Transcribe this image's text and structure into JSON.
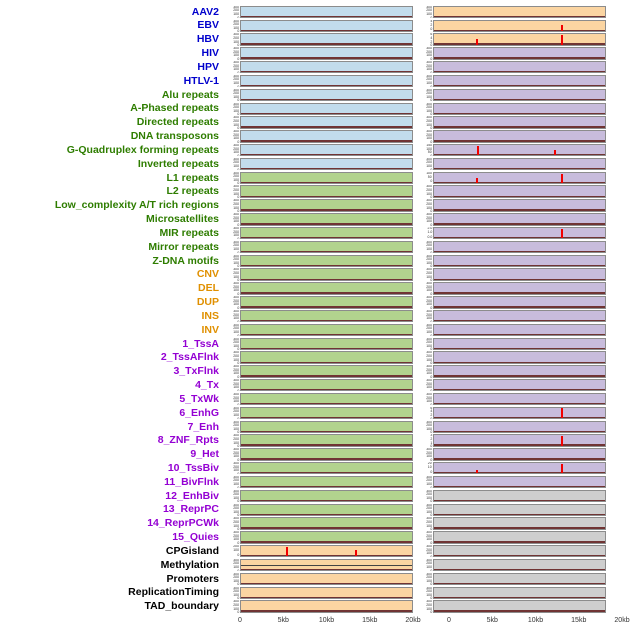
{
  "chart_data": {
    "type": "line",
    "layout": "small-multiples; 44 feature rows x 2 columns of mini coverage tracks over a 0-20kb window",
    "x_ticks": [
      "0",
      "5kb",
      "10kb",
      "15kb",
      "20kb"
    ],
    "x_range_kb": [
      0,
      20
    ],
    "default_yticks": [
      "300",
      "200",
      "100",
      "0"
    ],
    "palette": {
      "panel_blue": "#c2dcec",
      "panel_green": "#b2d38e",
      "panel_orange": "#fbd5a2",
      "panel_purple": "#c8bcdc",
      "panel_gray": "#cecece",
      "spike": "#f20000",
      "baseline": "#703434",
      "label_virus": "#0000cc",
      "label_repeat": "#2e7d00",
      "label_sv": "#e09000",
      "label_chromatin": "#9400d3",
      "label_other": "#000000"
    },
    "rows": [
      {
        "label": "AAV2",
        "group": "virus",
        "left": {
          "bg": "blue"
        },
        "right": {
          "bg": "orange"
        }
      },
      {
        "label": "EBV",
        "group": "virus",
        "left": {
          "bg": "blue"
        },
        "right": {
          "bg": "orange",
          "yticks": [
            "4",
            "2",
            "0"
          ],
          "spikes": [
            {
              "x": 0.75,
              "h": 0.55
            }
          ]
        }
      },
      {
        "label": "HBV",
        "group": "virus",
        "left": {
          "bg": "blue"
        },
        "right": {
          "bg": "orange",
          "yticks": [
            "6",
            "4",
            "2",
            "0"
          ],
          "spikes": [
            {
              "x": 0.25,
              "h": 0.55
            },
            {
              "x": 0.75,
              "h": 0.95
            }
          ]
        }
      },
      {
        "label": "HIV",
        "group": "virus",
        "left": {
          "bg": "blue"
        },
        "right": {
          "bg": "purple"
        }
      },
      {
        "label": "HPV",
        "group": "virus",
        "left": {
          "bg": "blue"
        },
        "right": {
          "bg": "purple"
        }
      },
      {
        "label": "HTLV-1",
        "group": "virus",
        "left": {
          "bg": "blue"
        },
        "right": {
          "bg": "purple"
        }
      },
      {
        "label": "Alu repeats",
        "group": "repeat",
        "left": {
          "bg": "blue"
        },
        "right": {
          "bg": "purple"
        }
      },
      {
        "label": "A-Phased repeats",
        "group": "repeat",
        "left": {
          "bg": "blue"
        },
        "right": {
          "bg": "purple"
        }
      },
      {
        "label": "Directed repeats",
        "group": "repeat",
        "left": {
          "bg": "blue"
        },
        "right": {
          "bg": "purple"
        }
      },
      {
        "label": "DNA transposons",
        "group": "repeat",
        "left": {
          "bg": "blue"
        },
        "right": {
          "bg": "purple"
        }
      },
      {
        "label": "G-Quadruplex forming repeats",
        "group": "repeat",
        "left": {
          "bg": "blue"
        },
        "right": {
          "bg": "purple",
          "yticks": [
            "150",
            "100",
            "50",
            "0"
          ],
          "spikes": [
            {
              "x": 0.26,
              "h": 0.9
            },
            {
              "x": 0.71,
              "h": 0.5
            }
          ]
        }
      },
      {
        "label": "Inverted repeats",
        "group": "repeat",
        "left": {
          "bg": "blue"
        },
        "right": {
          "bg": "purple"
        }
      },
      {
        "label": "L1 repeats",
        "group": "repeat",
        "left": {
          "bg": "green"
        },
        "right": {
          "bg": "purple",
          "yticks": [
            "100",
            "50",
            "0"
          ],
          "spikes": [
            {
              "x": 0.25,
              "h": 0.5
            },
            {
              "x": 0.75,
              "h": 0.9
            }
          ]
        }
      },
      {
        "label": "L2 repeats",
        "group": "repeat",
        "left": {
          "bg": "green"
        },
        "right": {
          "bg": "purple"
        }
      },
      {
        "label": "Low_complexity A/T rich regions",
        "group": "repeat",
        "left": {
          "bg": "green"
        },
        "right": {
          "bg": "purple"
        }
      },
      {
        "label": "Microsatellites",
        "group": "repeat",
        "left": {
          "bg": "green"
        },
        "right": {
          "bg": "purple"
        }
      },
      {
        "label": "MIR repeats",
        "group": "repeat",
        "left": {
          "bg": "green"
        },
        "right": {
          "bg": "purple",
          "yticks": [
            "2.0",
            "1.0",
            "0.0"
          ],
          "spikes": [
            {
              "x": 0.75,
              "h": 0.9
            }
          ]
        }
      },
      {
        "label": "Mirror repeats",
        "group": "repeat",
        "left": {
          "bg": "green"
        },
        "right": {
          "bg": "purple"
        }
      },
      {
        "label": "Z-DNA motifs",
        "group": "repeat",
        "left": {
          "bg": "green"
        },
        "right": {
          "bg": "purple"
        }
      },
      {
        "label": "CNV",
        "group": "sv",
        "left": {
          "bg": "green"
        },
        "right": {
          "bg": "purple"
        }
      },
      {
        "label": "DEL",
        "group": "sv",
        "left": {
          "bg": "green"
        },
        "right": {
          "bg": "purple"
        }
      },
      {
        "label": "DUP",
        "group": "sv",
        "left": {
          "bg": "green"
        },
        "right": {
          "bg": "purple"
        }
      },
      {
        "label": "INS",
        "group": "sv",
        "left": {
          "bg": "green"
        },
        "right": {
          "bg": "purple"
        }
      },
      {
        "label": "INV",
        "group": "sv",
        "left": {
          "bg": "green"
        },
        "right": {
          "bg": "purple"
        }
      },
      {
        "label": "1_TssA",
        "group": "chromatin",
        "left": {
          "bg": "green"
        },
        "right": {
          "bg": "purple"
        }
      },
      {
        "label": "2_TssAFlnk",
        "group": "chromatin",
        "left": {
          "bg": "green"
        },
        "right": {
          "bg": "purple"
        }
      },
      {
        "label": "3_TxFlnk",
        "group": "chromatin",
        "left": {
          "bg": "green"
        },
        "right": {
          "bg": "purple"
        }
      },
      {
        "label": "4_Tx",
        "group": "chromatin",
        "left": {
          "bg": "green"
        },
        "right": {
          "bg": "purple"
        }
      },
      {
        "label": "5_TxWk",
        "group": "chromatin",
        "left": {
          "bg": "green"
        },
        "right": {
          "bg": "purple"
        }
      },
      {
        "label": "6_EnhG",
        "group": "chromatin",
        "left": {
          "bg": "green"
        },
        "right": {
          "bg": "purple",
          "yticks": [
            "6",
            "4",
            "2",
            "0"
          ],
          "spikes": [
            {
              "x": 0.75,
              "h": 0.95
            }
          ]
        }
      },
      {
        "label": "7_Enh",
        "group": "chromatin",
        "left": {
          "bg": "green"
        },
        "right": {
          "bg": "purple"
        }
      },
      {
        "label": "8_ZNF_Rpts",
        "group": "chromatin",
        "left": {
          "bg": "green"
        },
        "right": {
          "bg": "purple",
          "yticks": [
            "3",
            "2",
            "1",
            "0"
          ],
          "spikes": [
            {
              "x": 0.75,
              "h": 0.9
            }
          ]
        }
      },
      {
        "label": "9_Het",
        "group": "chromatin",
        "left": {
          "bg": "green"
        },
        "right": {
          "bg": "purple"
        }
      },
      {
        "label": "10_TssBiv",
        "group": "chromatin",
        "left": {
          "bg": "green"
        },
        "right": {
          "bg": "purple",
          "yticks": [
            "20",
            "10",
            "0"
          ],
          "spikes": [
            {
              "x": 0.25,
              "h": 0.3
            },
            {
              "x": 0.75,
              "h": 0.95
            }
          ]
        }
      },
      {
        "label": "11_BivFlnk",
        "group": "chromatin",
        "left": {
          "bg": "green"
        },
        "right": {
          "bg": "purple"
        }
      },
      {
        "label": "12_EnhBiv",
        "group": "chromatin",
        "left": {
          "bg": "green"
        },
        "right": {
          "bg": "gray"
        }
      },
      {
        "label": "13_ReprPC",
        "group": "chromatin",
        "left": {
          "bg": "green"
        },
        "right": {
          "bg": "gray"
        }
      },
      {
        "label": "14_ReprPCWk",
        "group": "chromatin",
        "left": {
          "bg": "green"
        },
        "right": {
          "bg": "gray"
        }
      },
      {
        "label": "15_Quies",
        "group": "chromatin",
        "left": {
          "bg": "green"
        },
        "right": {
          "bg": "gray"
        }
      },
      {
        "label": "CPGisland",
        "group": "other",
        "left": {
          "bg": "orange",
          "yticks": [
            "200",
            "100",
            "0"
          ],
          "spikes": [
            {
              "x": 0.27,
              "h": 0.95
            },
            {
              "x": 0.67,
              "h": 0.6
            }
          ]
        },
        "right": {
          "bg": "gray"
        }
      },
      {
        "label": "Methylation",
        "group": "other",
        "left": {
          "bg": "orange",
          "hline": 0.38
        },
        "right": {
          "bg": "gray"
        }
      },
      {
        "label": "Promoters",
        "group": "other",
        "left": {
          "bg": "orange"
        },
        "right": {
          "bg": "gray"
        }
      },
      {
        "label": "ReplicationTiming",
        "group": "other",
        "left": {
          "bg": "orange"
        },
        "right": {
          "bg": "gray"
        }
      },
      {
        "label": "TAD_boundary",
        "group": "other",
        "left": {
          "bg": "orange"
        },
        "right": {
          "bg": "gray"
        }
      }
    ]
  }
}
